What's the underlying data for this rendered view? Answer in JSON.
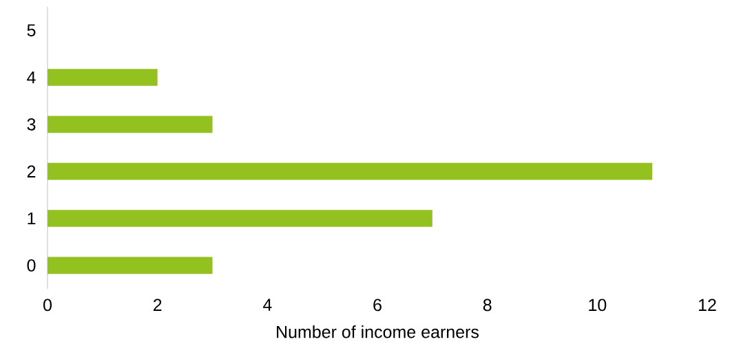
{
  "chart_data": {
    "type": "bar",
    "orientation": "horizontal",
    "categories": [
      "5",
      "4",
      "3",
      "2",
      "1",
      "0"
    ],
    "values": [
      0,
      2,
      3,
      11,
      7,
      3
    ],
    "color": "#92c120",
    "xlim": [
      0,
      12
    ],
    "xticks": [
      0,
      2,
      4,
      6,
      8,
      10,
      12
    ],
    "xlabel": "Number of income earners"
  }
}
